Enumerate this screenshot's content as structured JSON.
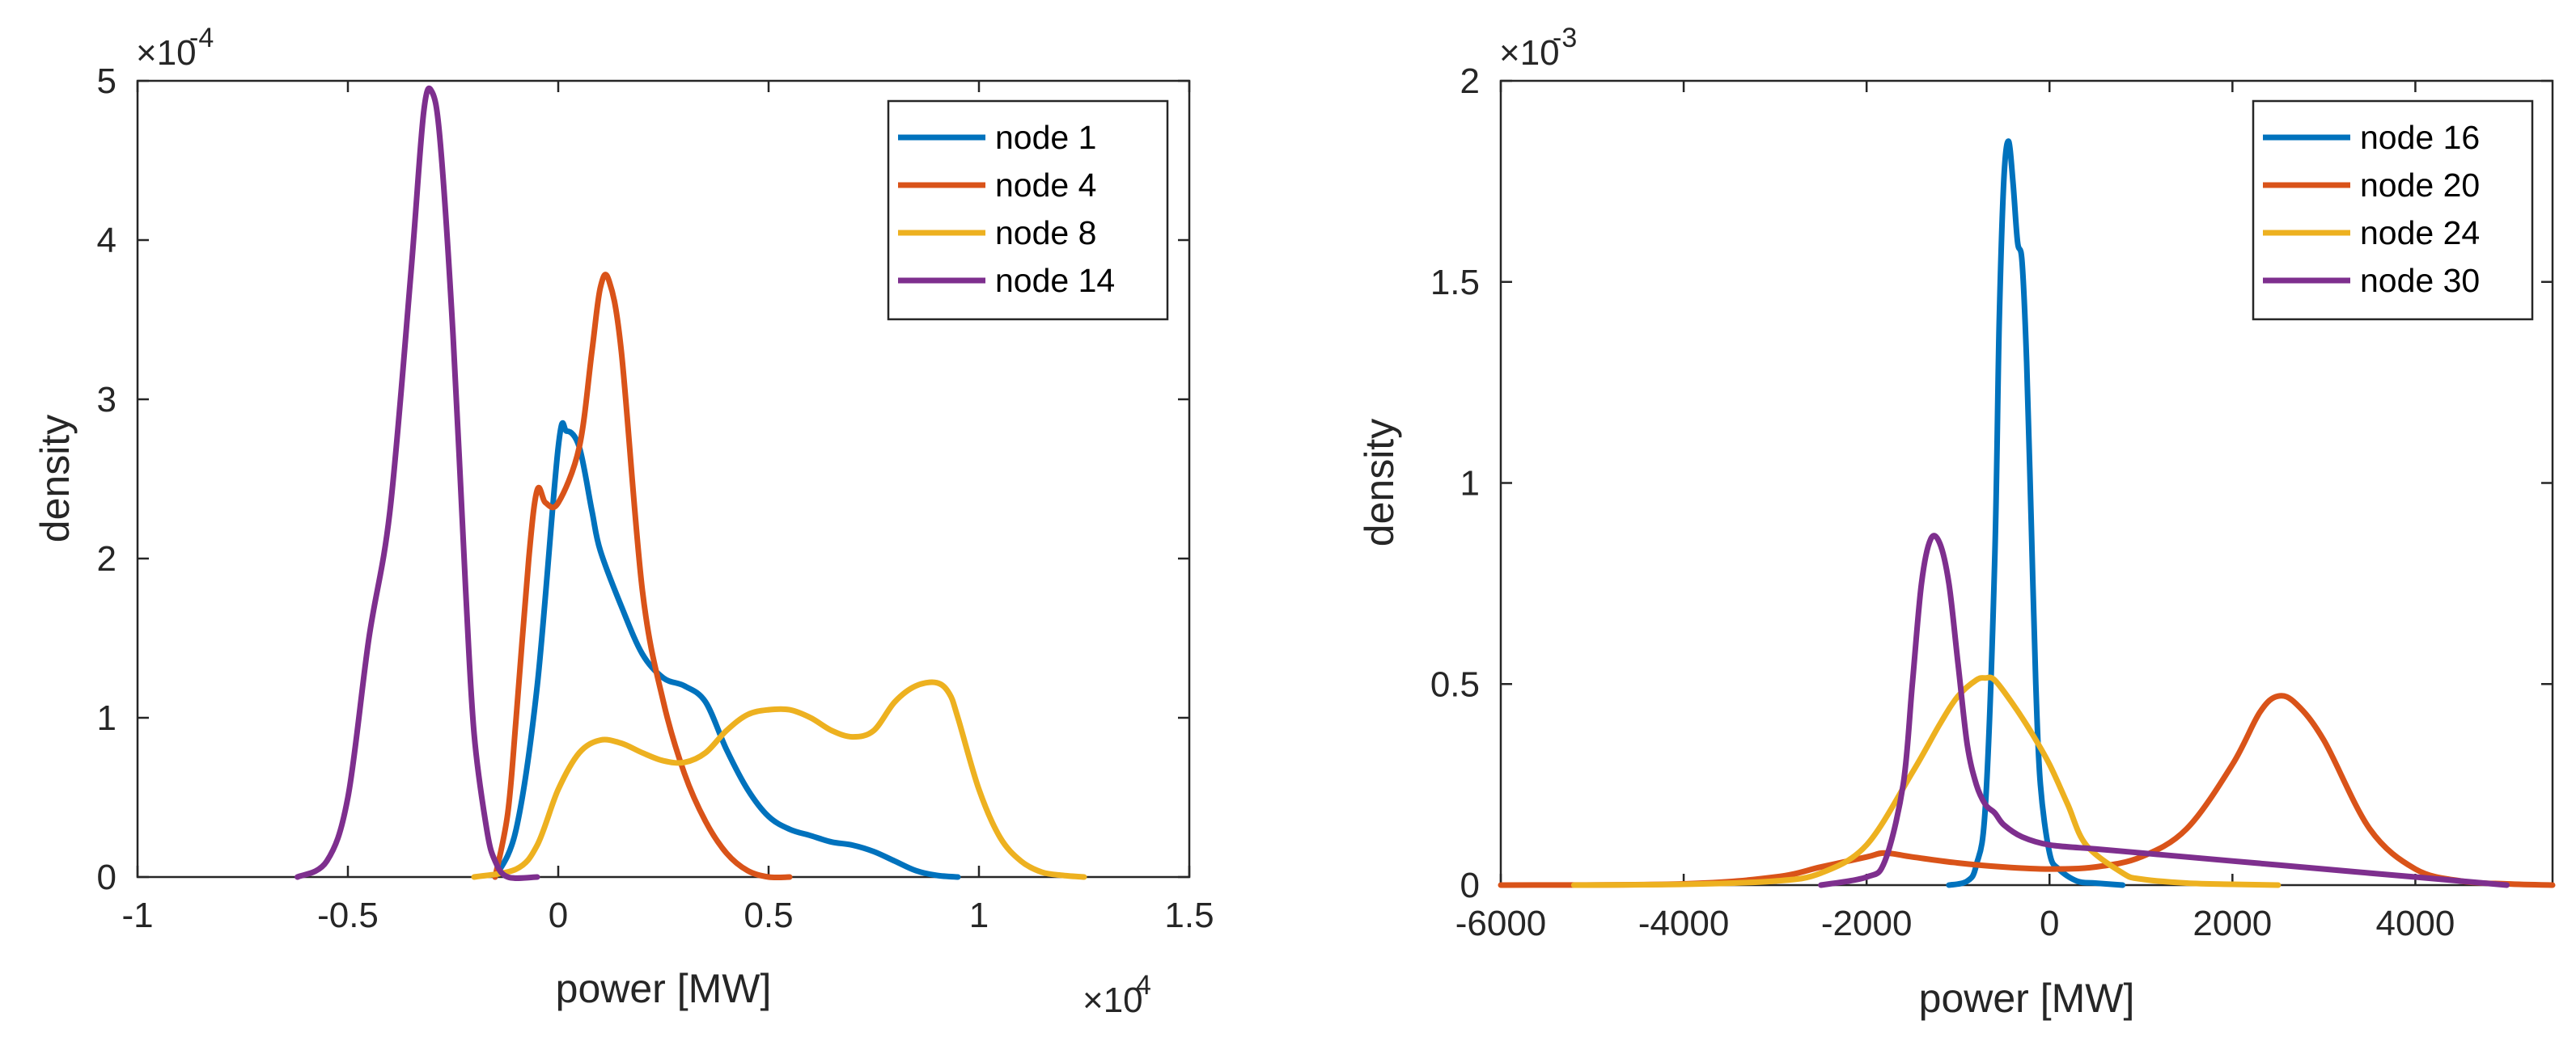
{
  "chart_data": [
    {
      "type": "line",
      "xlabel": "power [MW]",
      "ylabel": "density",
      "x_multiplier": {
        "base": "×10",
        "exponent": "4"
      },
      "y_multiplier": {
        "base": "×10",
        "exponent": "-4"
      },
      "xlim": [
        -1,
        1.5
      ],
      "ylim": [
        0,
        5
      ],
      "xticks": [
        -1,
        -0.5,
        0,
        0.5,
        1,
        1.5
      ],
      "xtick_labels": [
        "-1",
        "-0.5",
        "0",
        "0.5",
        "1",
        "1.5"
      ],
      "yticks": [
        0,
        1,
        2,
        3,
        4,
        5
      ],
      "ytick_labels": [
        "0",
        "1",
        "2",
        "3",
        "4",
        "5"
      ],
      "legend_position": "top-right",
      "series": [
        {
          "name": "node 1",
          "color": "#0072BD",
          "x": [
            -0.15,
            -0.1,
            -0.05,
            0,
            0.02,
            0.05,
            0.08,
            0.1,
            0.15,
            0.2,
            0.25,
            0.3,
            0.35,
            0.4,
            0.45,
            0.5,
            0.55,
            0.6,
            0.65,
            0.7,
            0.75,
            0.8,
            0.85,
            0.9,
            0.95
          ],
          "y": [
            0,
            0.3,
            1.2,
            2.7,
            2.8,
            2.7,
            2.3,
            2.05,
            1.7,
            1.4,
            1.25,
            1.2,
            1.1,
            0.8,
            0.55,
            0.38,
            0.3,
            0.26,
            0.22,
            0.2,
            0.16,
            0.1,
            0.04,
            0.01,
            0
          ]
        },
        {
          "name": "node 4",
          "color": "#D95319",
          "x": [
            -0.15,
            -0.12,
            -0.1,
            -0.07,
            -0.05,
            -0.03,
            0,
            0.05,
            0.08,
            0.1,
            0.12,
            0.15,
            0.2,
            0.25,
            0.3,
            0.35,
            0.4,
            0.45,
            0.5,
            0.55
          ],
          "y": [
            0,
            0.4,
            1.0,
            2.0,
            2.43,
            2.35,
            2.35,
            2.7,
            3.3,
            3.7,
            3.75,
            3.3,
            1.8,
            1.1,
            0.65,
            0.35,
            0.15,
            0.04,
            0,
            0
          ]
        },
        {
          "name": "node 8",
          "color": "#EDB120",
          "x": [
            -0.2,
            -0.1,
            -0.05,
            0,
            0.05,
            0.1,
            0.15,
            0.2,
            0.25,
            0.3,
            0.35,
            0.4,
            0.45,
            0.5,
            0.55,
            0.6,
            0.65,
            0.7,
            0.75,
            0.8,
            0.85,
            0.9,
            0.93,
            0.95,
            1.0,
            1.05,
            1.1,
            1.15,
            1.2,
            1.25
          ],
          "y": [
            0,
            0.05,
            0.2,
            0.55,
            0.78,
            0.86,
            0.84,
            0.78,
            0.73,
            0.72,
            0.78,
            0.92,
            1.02,
            1.05,
            1.05,
            1.0,
            0.92,
            0.88,
            0.92,
            1.1,
            1.2,
            1.22,
            1.15,
            1.0,
            0.55,
            0.25,
            0.1,
            0.03,
            0.01,
            0
          ]
        },
        {
          "name": "node 14",
          "color": "#7E2F8E",
          "x": [
            -0.62,
            -0.55,
            -0.5,
            -0.45,
            -0.4,
            -0.35,
            -0.32,
            -0.3,
            -0.28,
            -0.25,
            -0.22,
            -0.2,
            -0.17,
            -0.15,
            -0.12,
            -0.05
          ],
          "y": [
            0,
            0.1,
            0.5,
            1.5,
            2.3,
            3.8,
            4.8,
            4.93,
            4.6,
            3.4,
            1.8,
            0.9,
            0.3,
            0.1,
            0,
            0
          ]
        }
      ]
    },
    {
      "type": "line",
      "xlabel": "power [MW]",
      "ylabel": "density",
      "y_multiplier": {
        "base": "×10",
        "exponent": "-3"
      },
      "xlim": [
        -6000,
        5500
      ],
      "ylim": [
        0,
        2
      ],
      "xticks": [
        -6000,
        -4000,
        -2000,
        0,
        2000,
        4000
      ],
      "xtick_labels": [
        "-6000",
        "-4000",
        "-2000",
        "0",
        "2000",
        "4000"
      ],
      "yticks": [
        0,
        0.5,
        1,
        1.5,
        2
      ],
      "ytick_labels": [
        "0",
        "0.5",
        "1",
        "1.5",
        "2"
      ],
      "legend_position": "top-right",
      "series": [
        {
          "name": "node 16",
          "color": "#0072BD",
          "x": [
            -1100,
            -900,
            -800,
            -700,
            -600,
            -550,
            -500,
            -450,
            -400,
            -350,
            -300,
            -250,
            -200,
            -150,
            -100,
            0,
            100,
            300,
            500,
            800
          ],
          "y": [
            0,
            0.01,
            0.05,
            0.2,
            0.8,
            1.4,
            1.75,
            1.85,
            1.75,
            1.6,
            1.55,
            1.3,
            0.9,
            0.5,
            0.25,
            0.08,
            0.04,
            0.01,
            0.005,
            0
          ]
        },
        {
          "name": "node 20",
          "color": "#D95319",
          "x": [
            -6000,
            -4000,
            -3000,
            -2500,
            -2000,
            -1800,
            -1500,
            -1000,
            -500,
            0,
            500,
            1000,
            1500,
            2000,
            2300,
            2500,
            2700,
            3000,
            3500,
            4000,
            4500,
            5000,
            5500
          ],
          "y": [
            0,
            0.003,
            0.02,
            0.045,
            0.07,
            0.08,
            0.07,
            0.055,
            0.045,
            0.04,
            0.045,
            0.07,
            0.14,
            0.3,
            0.43,
            0.47,
            0.45,
            0.36,
            0.14,
            0.04,
            0.01,
            0.003,
            0
          ]
        },
        {
          "name": "node 24",
          "color": "#EDB120",
          "x": [
            -5200,
            -4000,
            -3000,
            -2500,
            -2000,
            -1500,
            -1200,
            -1000,
            -800,
            -700,
            -600,
            -400,
            -200,
            0,
            200,
            400,
            800,
            1000,
            1500,
            2000,
            2500
          ],
          "y": [
            0,
            0.002,
            0.01,
            0.03,
            0.1,
            0.28,
            0.4,
            0.47,
            0.51,
            0.515,
            0.51,
            0.45,
            0.38,
            0.3,
            0.2,
            0.1,
            0.03,
            0.015,
            0.005,
            0.002,
            0
          ]
        },
        {
          "name": "node 30",
          "color": "#7E2F8E",
          "x": [
            -2500,
            -2000,
            -1800,
            -1600,
            -1500,
            -1400,
            -1300,
            -1200,
            -1100,
            -1000,
            -900,
            -800,
            -700,
            -600,
            -500,
            -300,
            0,
            500,
            1000,
            1500,
            2000,
            2500,
            3000,
            3500,
            4000,
            4500,
            5000
          ],
          "y": [
            0,
            0.02,
            0.06,
            0.25,
            0.5,
            0.75,
            0.86,
            0.85,
            0.75,
            0.55,
            0.35,
            0.25,
            0.2,
            0.18,
            0.15,
            0.12,
            0.1,
            0.09,
            0.08,
            0.07,
            0.06,
            0.05,
            0.04,
            0.03,
            0.02,
            0.01,
            0
          ]
        }
      ]
    }
  ]
}
